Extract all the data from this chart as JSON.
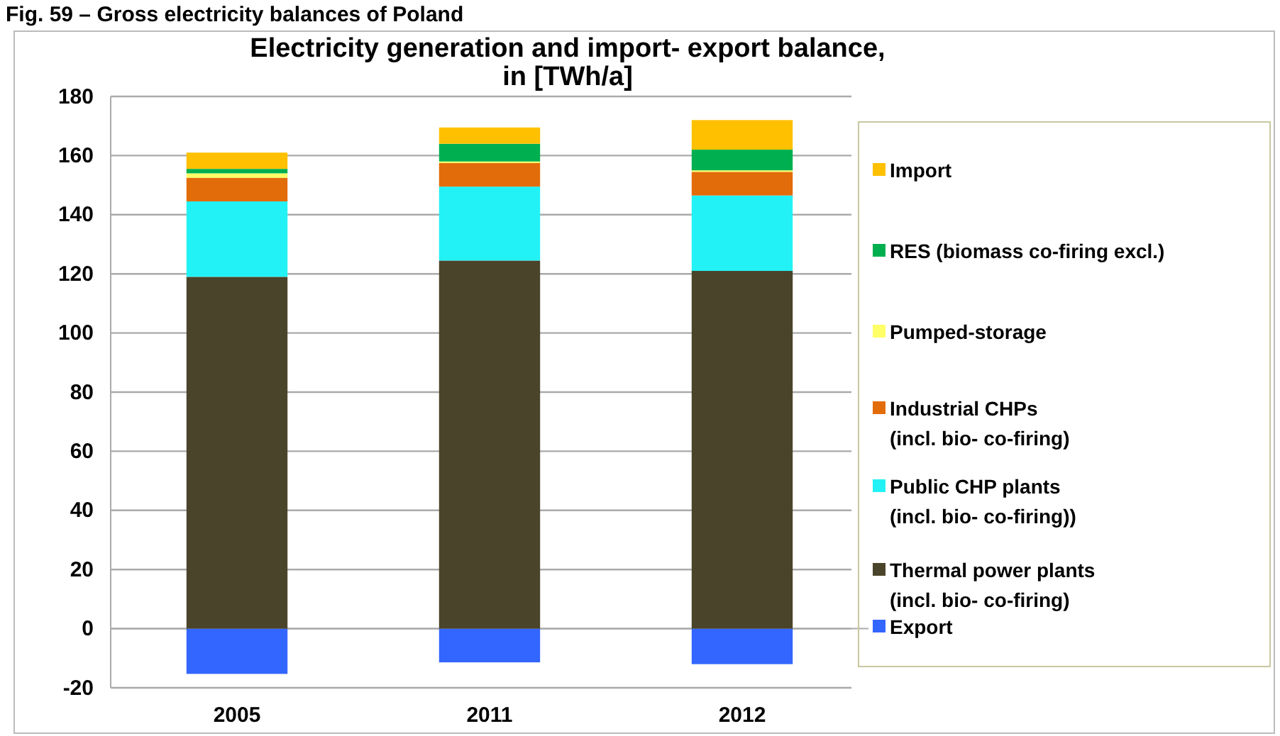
{
  "chart_data": {
    "type": "bar",
    "title": "Electricity generation and import- export balance,\nin [TWh/a]",
    "annotations": [
      "Fig. 59 – Gross electricity balances of Poland"
    ],
    "categories": [
      "2005",
      "2011",
      "2012"
    ],
    "stacked": true,
    "series": [
      {
        "name": "Export",
        "color": "#3366ff",
        "values": [
          -15.3,
          -11.4,
          -12
        ]
      },
      {
        "name": "Thermal power plants\n(incl. bio- co-firing)",
        "color": "#4a442a",
        "values": [
          119,
          124.5,
          121
        ]
      },
      {
        "name": "Public CHP plants\n(incl. bio- co-firing))",
        "color": "#22f2f5",
        "values": [
          25.5,
          25,
          25.5
        ]
      },
      {
        "name": "Industrial CHPs\n(incl. bio- co-firing)",
        "color": "#e36c0a",
        "values": [
          8,
          8,
          8
        ]
      },
      {
        "name": "Pumped-storage",
        "color": "#ffff66",
        "values": [
          1.5,
          0.5,
          0.5
        ]
      },
      {
        "name": "RES (biomass co-firing excl.)",
        "color": "#00b050",
        "values": [
          1.5,
          6,
          7
        ]
      },
      {
        "name": "Import",
        "color": "#ffc000",
        "values": [
          5.5,
          5.5,
          10
        ]
      }
    ],
    "ylim": [
      -20,
      180
    ],
    "yticks": [
      -20,
      0,
      20,
      40,
      60,
      80,
      100,
      120,
      140,
      160,
      180
    ],
    "grid": "y",
    "legend": "right"
  }
}
